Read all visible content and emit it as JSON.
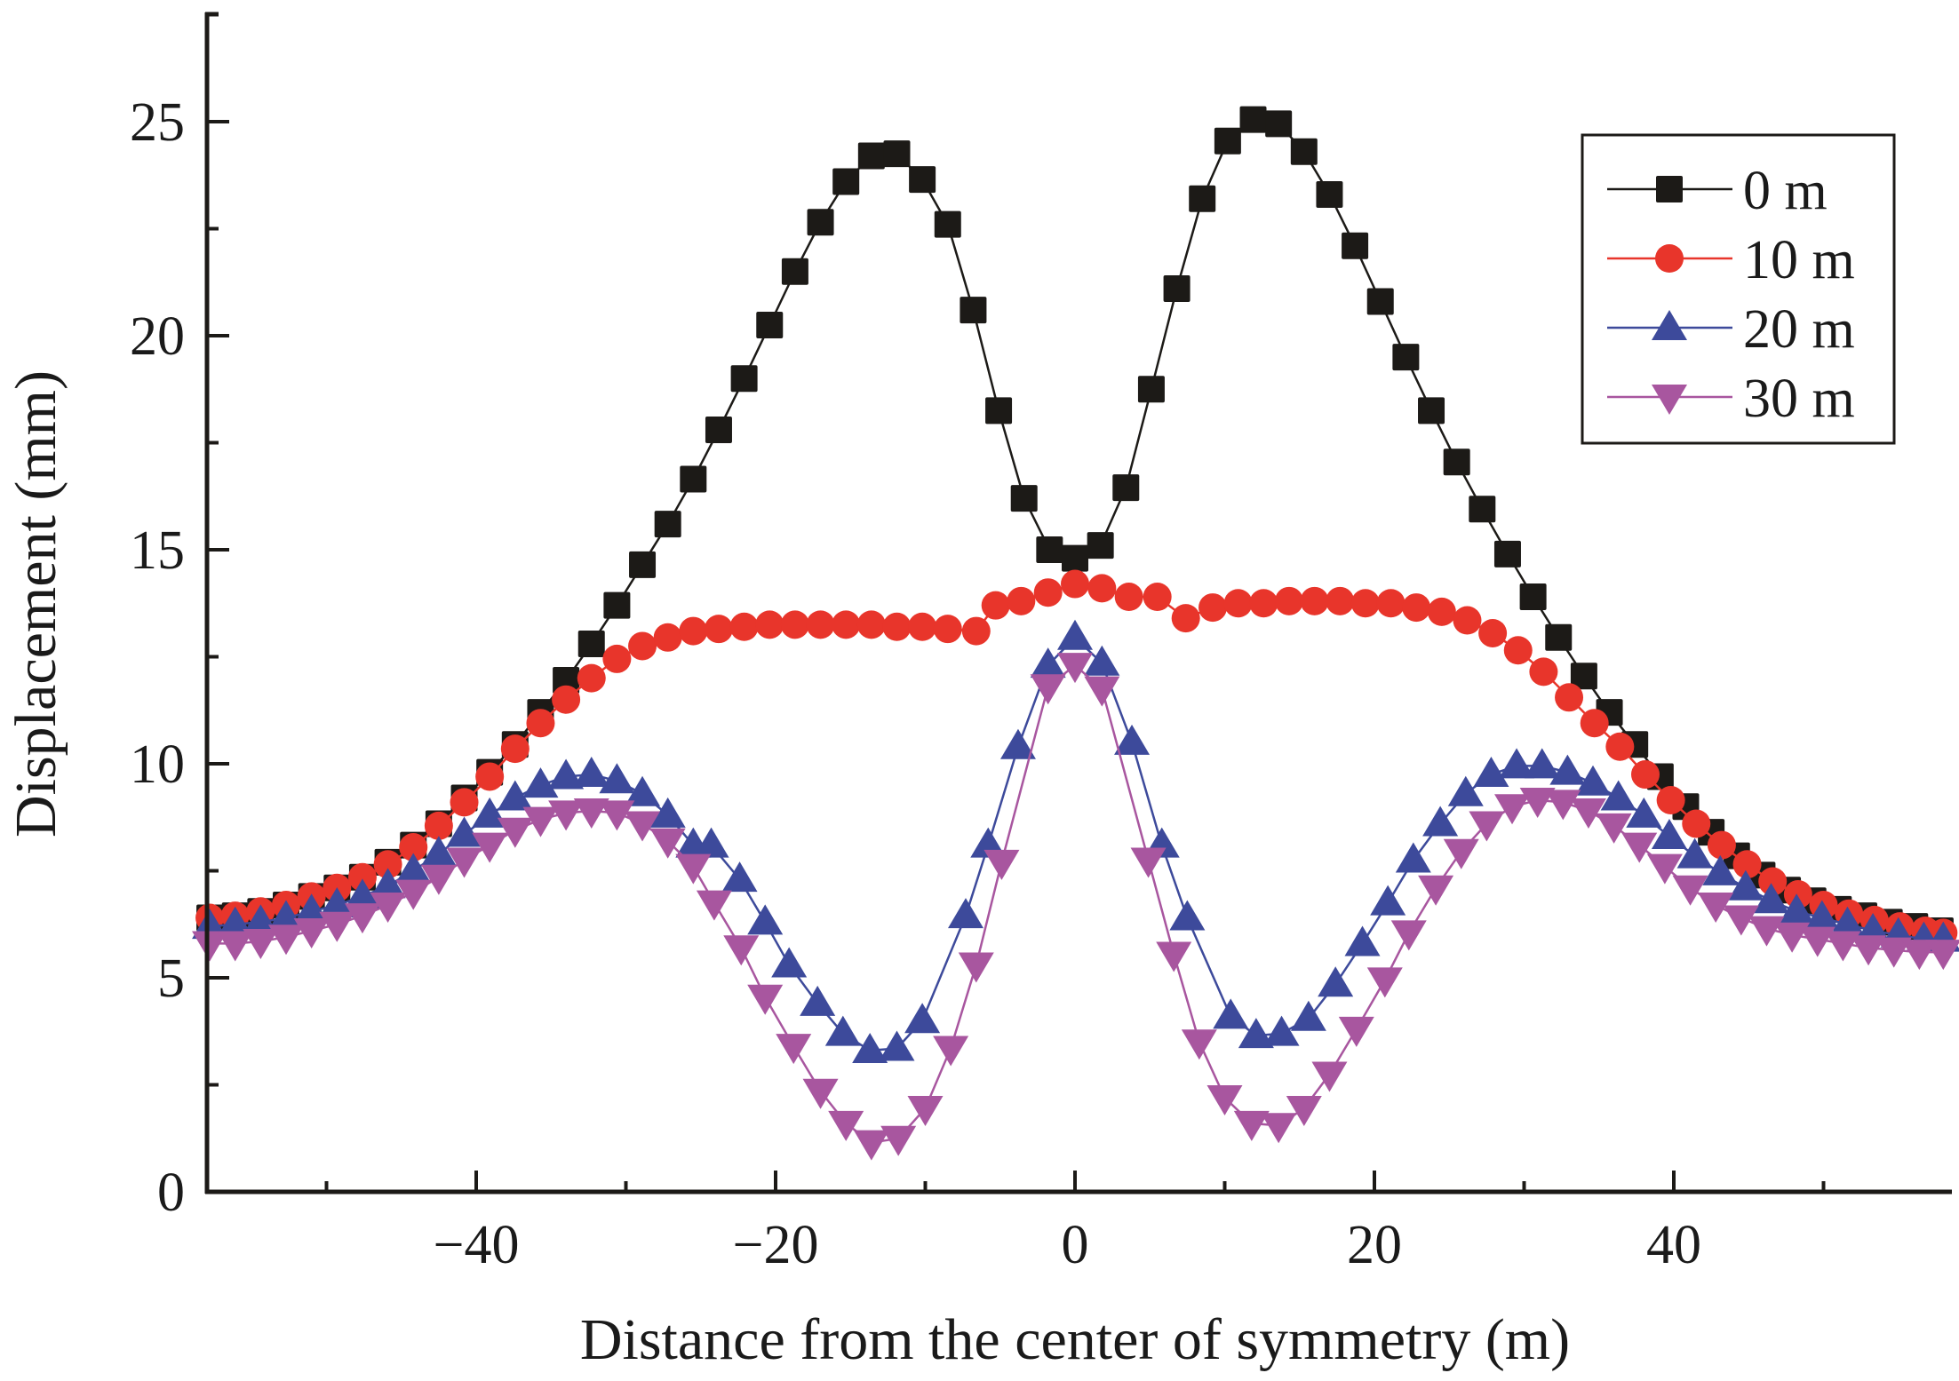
{
  "chart_data": {
    "type": "line",
    "title": "",
    "xlabel": "Distance from the center of symmetry (m)",
    "ylabel": "Displacement (mm)",
    "xlim": [
      -58.3,
      58.5
    ],
    "ylim": [
      0,
      27.5
    ],
    "x_ticks": [
      -40,
      -20,
      0,
      20,
      40
    ],
    "x_tick_labels": [
      "−40",
      "−20",
      "0",
      "20",
      "40"
    ],
    "x_minor_ticks": [
      -50,
      -30,
      -10,
      10,
      30,
      50
    ],
    "y_ticks": [
      0,
      5,
      10,
      15,
      20,
      25
    ],
    "y_tick_labels": [
      "0",
      "5",
      "10",
      "15",
      "20",
      "25"
    ],
    "y_minor_ticks": [
      2.5,
      7.5,
      12.5,
      17.5,
      22.5
    ],
    "grid": false,
    "legend_position": "top-right",
    "series": [
      {
        "name": "0 m",
        "marker": "square",
        "color": "#1c1a17",
        "x": [
          -57.8,
          -56.1,
          -54.4,
          -52.7,
          -51.0,
          -49.3,
          -47.6,
          -45.9,
          -44.2,
          -42.5,
          -40.8,
          -39.1,
          -37.4,
          -35.7,
          -34.0,
          -32.3,
          -30.6,
          -28.9,
          -27.2,
          -25.5,
          -23.8,
          -22.1,
          -20.4,
          -18.7,
          -17.0,
          -15.3,
          -13.6,
          -11.9,
          -10.2,
          -8.5,
          -6.8,
          -5.1,
          -3.4,
          -1.7,
          0,
          1.7,
          3.4,
          5.1,
          6.8,
          8.5,
          10.2,
          11.9,
          13.6,
          15.3,
          17.0,
          18.7,
          20.4,
          22.1,
          23.8,
          25.5,
          27.2,
          28.9,
          30.6,
          32.3,
          34.0,
          35.7,
          37.4,
          39.1,
          40.8,
          42.5,
          44.2,
          45.9,
          47.6,
          49.3,
          51.0,
          52.7,
          54.4,
          56.1,
          57.8
        ],
        "y": [
          6.4,
          6.45,
          6.55,
          6.7,
          6.9,
          7.1,
          7.35,
          7.7,
          8.1,
          8.6,
          9.2,
          9.8,
          10.45,
          11.2,
          11.95,
          12.8,
          13.7,
          14.65,
          15.6,
          16.65,
          17.8,
          19.0,
          20.25,
          21.5,
          22.65,
          23.6,
          24.2,
          24.25,
          23.65,
          22.6,
          20.6,
          18.25,
          16.2,
          15.0,
          14.8,
          15.1,
          16.45,
          18.75,
          21.1,
          23.2,
          24.55,
          25.05,
          24.95,
          24.3,
          23.3,
          22.1,
          20.8,
          19.5,
          18.25,
          17.05,
          15.95,
          14.9,
          13.9,
          12.95,
          12.05,
          11.2,
          10.45,
          9.7,
          9.0,
          8.4,
          7.85,
          7.4,
          7.05,
          6.8,
          6.6,
          6.45,
          6.3,
          6.2,
          6.1
        ]
      },
      {
        "name": "10 m",
        "marker": "circle",
        "color": "#e8352b",
        "x": [
          -57.8,
          -56.1,
          -54.4,
          -52.7,
          -51.0,
          -49.3,
          -47.6,
          -45.9,
          -44.2,
          -42.5,
          -40.8,
          -39.1,
          -37.4,
          -35.7,
          -34.0,
          -32.3,
          -30.6,
          -28.9,
          -27.2,
          -25.5,
          -23.8,
          -22.1,
          -20.4,
          -18.7,
          -17.0,
          -15.3,
          -13.6,
          -11.9,
          -10.2,
          -8.5,
          -6.6,
          -5.3,
          -3.6,
          -1.8,
          0,
          1.8,
          3.6,
          5.5,
          7.4,
          9.2,
          10.9,
          12.6,
          14.3,
          16.0,
          17.7,
          19.4,
          21.1,
          22.8,
          24.5,
          26.2,
          27.9,
          29.6,
          31.3,
          33.0,
          34.7,
          36.4,
          38.1,
          39.8,
          41.5,
          43.2,
          44.9,
          46.6,
          48.3,
          50.0,
          51.7,
          53.4,
          55.1,
          56.8,
          58.0
        ],
        "y": [
          6.4,
          6.45,
          6.55,
          6.7,
          6.9,
          7.1,
          7.35,
          7.65,
          8.05,
          8.55,
          9.1,
          9.7,
          10.35,
          10.95,
          11.5,
          12.0,
          12.45,
          12.75,
          12.95,
          13.1,
          13.15,
          13.2,
          13.25,
          13.25,
          13.25,
          13.25,
          13.25,
          13.2,
          13.2,
          13.15,
          13.1,
          13.7,
          13.8,
          14.0,
          14.2,
          14.1,
          13.9,
          13.9,
          13.4,
          13.65,
          13.75,
          13.75,
          13.8,
          13.8,
          13.8,
          13.75,
          13.75,
          13.65,
          13.55,
          13.35,
          13.05,
          12.65,
          12.15,
          11.55,
          10.95,
          10.4,
          9.75,
          9.15,
          8.6,
          8.1,
          7.65,
          7.25,
          6.95,
          6.7,
          6.5,
          6.35,
          6.2,
          6.1,
          6.05
        ]
      },
      {
        "name": "20 m",
        "marker": "triangle-up",
        "color": "#3d4a9b",
        "x": [
          -57.8,
          -56.1,
          -54.4,
          -52.7,
          -51.0,
          -49.3,
          -47.6,
          -45.9,
          -44.2,
          -42.5,
          -40.8,
          -39.1,
          -37.4,
          -35.7,
          -34.0,
          -32.3,
          -30.6,
          -28.9,
          -27.2,
          -25.5,
          -24.3,
          -22.4,
          -20.7,
          -19.1,
          -17.2,
          -15.5,
          -13.7,
          -11.9,
          -10.2,
          -7.3,
          -5.8,
          -3.8,
          -1.8,
          0,
          1.8,
          3.8,
          5.8,
          7.5,
          10.4,
          12.1,
          13.8,
          15.6,
          17.4,
          19.2,
          20.9,
          22.6,
          24.4,
          26.1,
          27.8,
          29.5,
          31.2,
          32.9,
          34.6,
          36.3,
          38.0,
          39.7,
          41.4,
          43.1,
          44.8,
          46.5,
          48.2,
          49.9,
          51.6,
          53.3,
          55.0,
          56.7,
          58.0
        ],
        "y": [
          6.2,
          6.25,
          6.3,
          6.4,
          6.55,
          6.7,
          6.9,
          7.15,
          7.5,
          7.9,
          8.35,
          8.8,
          9.2,
          9.5,
          9.7,
          9.75,
          9.6,
          9.3,
          8.8,
          8.1,
          8.1,
          7.3,
          6.3,
          5.3,
          4.4,
          3.7,
          3.3,
          3.35,
          4.0,
          6.45,
          8.1,
          10.4,
          12.3,
          12.95,
          12.35,
          10.5,
          8.1,
          6.4,
          4.1,
          3.65,
          3.7,
          4.05,
          4.85,
          5.8,
          6.75,
          7.75,
          8.6,
          9.3,
          9.75,
          9.95,
          9.95,
          9.8,
          9.55,
          9.2,
          8.8,
          8.3,
          7.85,
          7.45,
          7.1,
          6.8,
          6.55,
          6.4,
          6.25,
          6.1,
          6.0,
          5.9,
          5.9
        ]
      },
      {
        "name": "30 m",
        "marker": "triangle-down",
        "color": "#a8569f",
        "x": [
          -57.8,
          -56.1,
          -54.4,
          -52.7,
          -51.0,
          -49.3,
          -47.6,
          -45.9,
          -44.2,
          -42.5,
          -40.8,
          -39.1,
          -37.4,
          -35.7,
          -34.0,
          -32.3,
          -30.6,
          -28.9,
          -27.2,
          -25.5,
          -24.1,
          -22.3,
          -20.7,
          -18.8,
          -17.0,
          -15.3,
          -13.6,
          -11.8,
          -10.0,
          -8.3,
          -6.6,
          -4.9,
          -1.8,
          0,
          1.8,
          4.9,
          6.6,
          8.3,
          10.0,
          11.8,
          13.6,
          15.3,
          17.0,
          18.8,
          20.7,
          22.3,
          24.1,
          25.8,
          27.5,
          29.2,
          30.9,
          32.6,
          34.3,
          36.0,
          37.7,
          39.4,
          41.1,
          42.8,
          44.5,
          46.2,
          47.9,
          49.6,
          51.3,
          53.0,
          54.7,
          56.4,
          58.0
        ],
        "y": [
          5.8,
          5.8,
          5.85,
          5.95,
          6.1,
          6.25,
          6.45,
          6.7,
          7.0,
          7.35,
          7.75,
          8.1,
          8.45,
          8.7,
          8.85,
          8.9,
          8.85,
          8.6,
          8.2,
          7.6,
          6.75,
          5.7,
          4.55,
          3.4,
          2.35,
          1.6,
          1.15,
          1.25,
          1.95,
          3.35,
          5.3,
          7.7,
          11.8,
          12.3,
          11.75,
          7.75,
          5.55,
          3.5,
          2.2,
          1.6,
          1.55,
          1.95,
          2.75,
          3.8,
          4.95,
          6.05,
          7.1,
          7.95,
          8.6,
          9.0,
          9.15,
          9.1,
          8.9,
          8.55,
          8.1,
          7.6,
          7.1,
          6.7,
          6.4,
          6.15,
          6.0,
          5.9,
          5.8,
          5.7,
          5.65,
          5.6,
          5.6
        ]
      }
    ]
  }
}
